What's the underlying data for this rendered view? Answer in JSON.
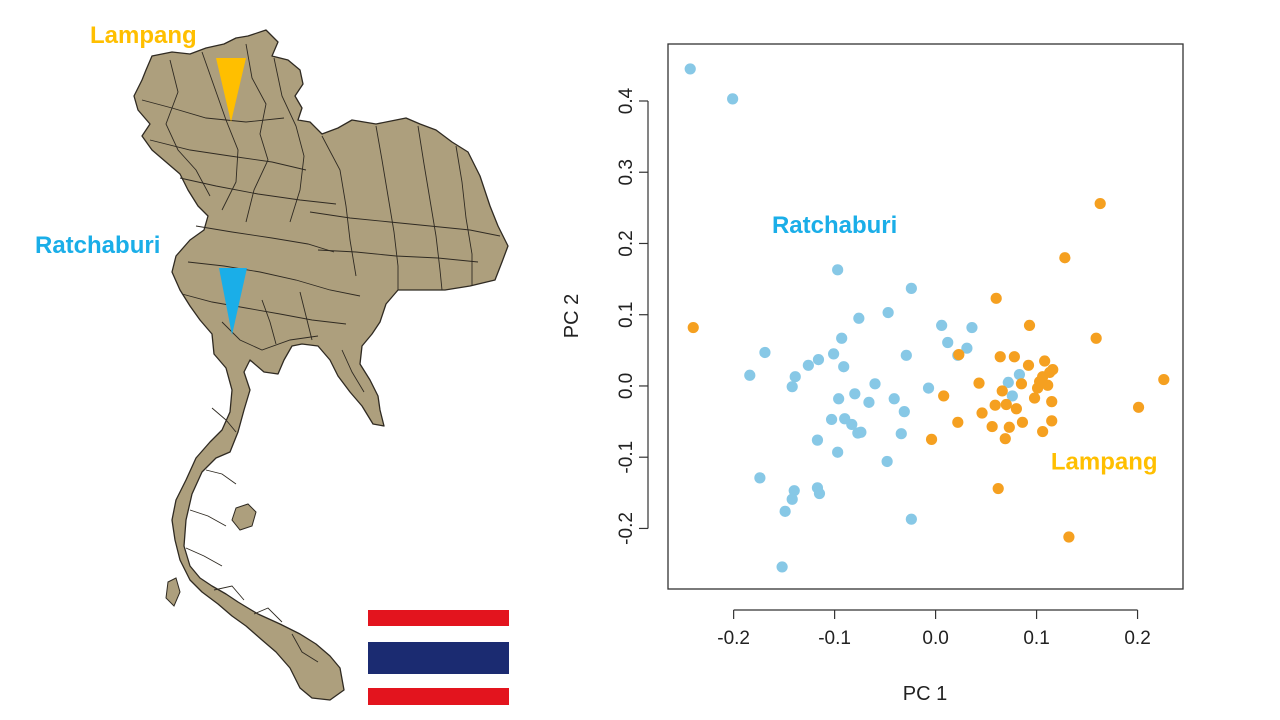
{
  "map": {
    "labels": {
      "north": "Lampang",
      "west": "Ratchaburi"
    },
    "colors": {
      "land": "#ad9f7d",
      "border": "#2f2a22",
      "lampang": "#ffbf00",
      "ratchaburi": "#1aaee8",
      "flag_red": "#e3141e",
      "flag_white": "#ffffff",
      "flag_blue": "#1b2b71"
    },
    "icons": [
      "thailand-map",
      "lampang-marker-icon",
      "ratchaburi-marker-icon",
      "thai-flag-icon"
    ]
  },
  "chart_data": {
    "type": "scatter",
    "title": "",
    "xlabel": "PC 1",
    "ylabel": "PC 2",
    "xlim": [
      -0.265,
      0.245
    ],
    "ylim": [
      -0.285,
      0.48
    ],
    "xticks": [
      {
        "value": -0.2,
        "label": "-0.2"
      },
      {
        "value": -0.1,
        "label": "-0.1"
      },
      {
        "value": 0.0,
        "label": "0.0"
      },
      {
        "value": 0.1,
        "label": "0.1"
      },
      {
        "value": 0.2,
        "label": "0.2"
      }
    ],
    "yticks": [
      {
        "value": -0.2,
        "label": "-0.2"
      },
      {
        "value": -0.1,
        "label": "-0.1"
      },
      {
        "value": 0.0,
        "label": "0.0"
      },
      {
        "value": 0.1,
        "label": "0.1"
      },
      {
        "value": 0.2,
        "label": "0.2"
      },
      {
        "value": 0.3,
        "label": "0.3"
      },
      {
        "value": 0.4,
        "label": "0.4"
      }
    ],
    "grid": false,
    "series": [
      {
        "name": "Ratchaburi",
        "color": "#87c8e6",
        "label_at": {
          "x": -0.1,
          "y": 0.215
        },
        "points": [
          [
            -0.243,
            0.445
          ],
          [
            -0.201,
            0.403
          ],
          [
            -0.097,
            0.163
          ],
          [
            -0.024,
            0.137
          ],
          [
            -0.047,
            0.103
          ],
          [
            -0.076,
            0.095
          ],
          [
            0.006,
            0.085
          ],
          [
            0.036,
            0.082
          ],
          [
            -0.093,
            0.067
          ],
          [
            0.012,
            0.061
          ],
          [
            0.031,
            0.053
          ],
          [
            -0.169,
            0.047
          ],
          [
            -0.101,
            0.045
          ],
          [
            -0.029,
            0.043
          ],
          [
            -0.116,
            0.037
          ],
          [
            -0.126,
            0.029
          ],
          [
            -0.091,
            0.027
          ],
          [
            0.022,
            0.043
          ],
          [
            0.083,
            0.016
          ],
          [
            0.072,
            0.005
          ],
          [
            0.076,
            -0.014
          ],
          [
            -0.139,
            0.013
          ],
          [
            -0.184,
            0.015
          ],
          [
            -0.06,
            0.003
          ],
          [
            -0.142,
            -0.001
          ],
          [
            -0.007,
            -0.003
          ],
          [
            -0.041,
            -0.018
          ],
          [
            -0.08,
            -0.011
          ],
          [
            -0.096,
            -0.018
          ],
          [
            -0.066,
            -0.023
          ],
          [
            -0.031,
            -0.036
          ],
          [
            -0.103,
            -0.047
          ],
          [
            -0.09,
            -0.046
          ],
          [
            -0.083,
            -0.054
          ],
          [
            -0.077,
            -0.066
          ],
          [
            -0.074,
            -0.065
          ],
          [
            -0.034,
            -0.067
          ],
          [
            -0.117,
            -0.076
          ],
          [
            -0.097,
            -0.093
          ],
          [
            -0.048,
            -0.106
          ],
          [
            -0.174,
            -0.129
          ],
          [
            -0.14,
            -0.147
          ],
          [
            -0.117,
            -0.143
          ],
          [
            -0.115,
            -0.151
          ],
          [
            -0.142,
            -0.159
          ],
          [
            -0.149,
            -0.176
          ],
          [
            -0.024,
            -0.187
          ],
          [
            -0.152,
            -0.254
          ]
        ]
      },
      {
        "name": "Lampang",
        "color": "#f5a020",
        "label_at": {
          "x": 0.167,
          "y": -0.117
        },
        "points": [
          [
            0.163,
            0.256
          ],
          [
            0.128,
            0.18
          ],
          [
            0.06,
            0.123
          ],
          [
            0.093,
            0.085
          ],
          [
            0.159,
            0.067
          ],
          [
            -0.24,
            0.082
          ],
          [
            0.023,
            0.044
          ],
          [
            0.064,
            0.041
          ],
          [
            0.078,
            0.041
          ],
          [
            0.092,
            0.029
          ],
          [
            0.108,
            0.035
          ],
          [
            0.116,
            0.023
          ],
          [
            0.106,
            0.013
          ],
          [
            0.113,
            0.019
          ],
          [
            0.103,
            0.006
          ],
          [
            0.085,
            0.003
          ],
          [
            0.043,
            0.004
          ],
          [
            0.066,
            -0.007
          ],
          [
            0.101,
            -0.003
          ],
          [
            0.111,
            0.001
          ],
          [
            0.098,
            -0.017
          ],
          [
            0.008,
            -0.014
          ],
          [
            0.046,
            -0.038
          ],
          [
            0.059,
            -0.027
          ],
          [
            0.07,
            -0.026
          ],
          [
            0.08,
            -0.032
          ],
          [
            0.115,
            -0.022
          ],
          [
            0.226,
            0.009
          ],
          [
            0.201,
            -0.03
          ],
          [
            0.022,
            -0.051
          ],
          [
            0.056,
            -0.057
          ],
          [
            0.073,
            -0.058
          ],
          [
            0.086,
            -0.051
          ],
          [
            0.115,
            -0.049
          ],
          [
            0.106,
            -0.064
          ],
          [
            0.069,
            -0.074
          ],
          [
            -0.004,
            -0.075
          ],
          [
            0.062,
            -0.144
          ],
          [
            0.132,
            -0.212
          ]
        ]
      }
    ]
  }
}
